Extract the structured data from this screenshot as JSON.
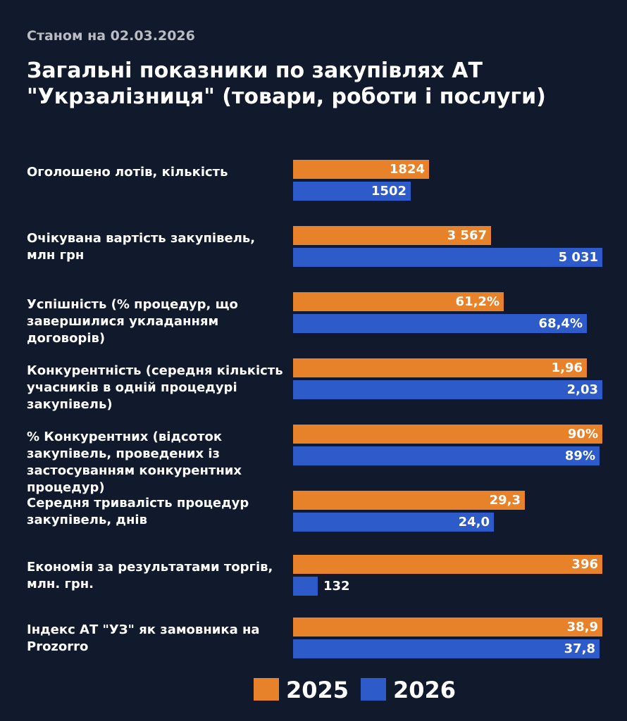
{
  "header": {
    "date": "Станом на 02.03.2026",
    "title": "Загальні показники по закупівлях АТ \"Укрзалізниця\" (товари, роботи і послуги)"
  },
  "colors": {
    "background": "#111a2c",
    "series_2025": "#e8822a",
    "series_2026": "#2d5bc9"
  },
  "chart_data": {
    "type": "bar",
    "orientation": "horizontal",
    "title": "Загальні показники по закупівлях АТ \"Укрзалізниця\" (товари, роботи і послуги)",
    "note": "Each category is scaled independently; fill = fraction of the row's longest bar",
    "legend": {
      "placement": "bottom",
      "entries": [
        "2025",
        "2026"
      ]
    },
    "categories": [
      {
        "label": "Оголошено лотів, кількість",
        "v2025": "1824",
        "v2026": "1502",
        "fill2025": 0.44,
        "fill2026": 0.38
      },
      {
        "label": "Очікувана вартість закупівель, млн грн",
        "v2025": "3 567",
        "v2026": "5 031",
        "fill2025": 0.64,
        "fill2026": 1.0
      },
      {
        "label": "Успішність (% процедур, що завершилися укладанням договорів)",
        "v2025": "61,2%",
        "v2026": "68,4%",
        "fill2025": 0.68,
        "fill2026": 0.95
      },
      {
        "label": "Конкурентність (середня кількість учасників в одній процедурі закупівель)",
        "v2025": "1,96",
        "v2026": "2,03",
        "fill2025": 0.95,
        "fill2026": 1.0
      },
      {
        "label": "% Конкурентних (відсоток закупівель, проведених із застосуванням конкурентних процедур)",
        "v2025": "90%",
        "v2026": "89%",
        "fill2025": 1.0,
        "fill2026": 0.99
      },
      {
        "label": "Середня тривалість процедур закупівель, днів",
        "v2025": "29,3",
        "v2026": "24,0",
        "fill2025": 0.75,
        "fill2026": 0.65
      },
      {
        "label": "Економія за результатами торгів, млн. грн.",
        "v2025": "396",
        "v2026": "132",
        "fill2025": 1.0,
        "fill2026": 0.08
      },
      {
        "label": "Індекс АТ \"УЗ\" як замовника на Prozorro",
        "v2025": "38,9",
        "v2026": "37,8",
        "fill2025": 1.0,
        "fill2026": 0.99
      }
    ],
    "series": [
      {
        "name": "2025",
        "values": [
          1824,
          3567,
          61.2,
          1.96,
          90,
          29.3,
          396,
          38.9
        ]
      },
      {
        "name": "2026",
        "values": [
          1502,
          5031,
          68.4,
          2.03,
          89,
          24.0,
          132,
          37.8
        ]
      }
    ]
  }
}
